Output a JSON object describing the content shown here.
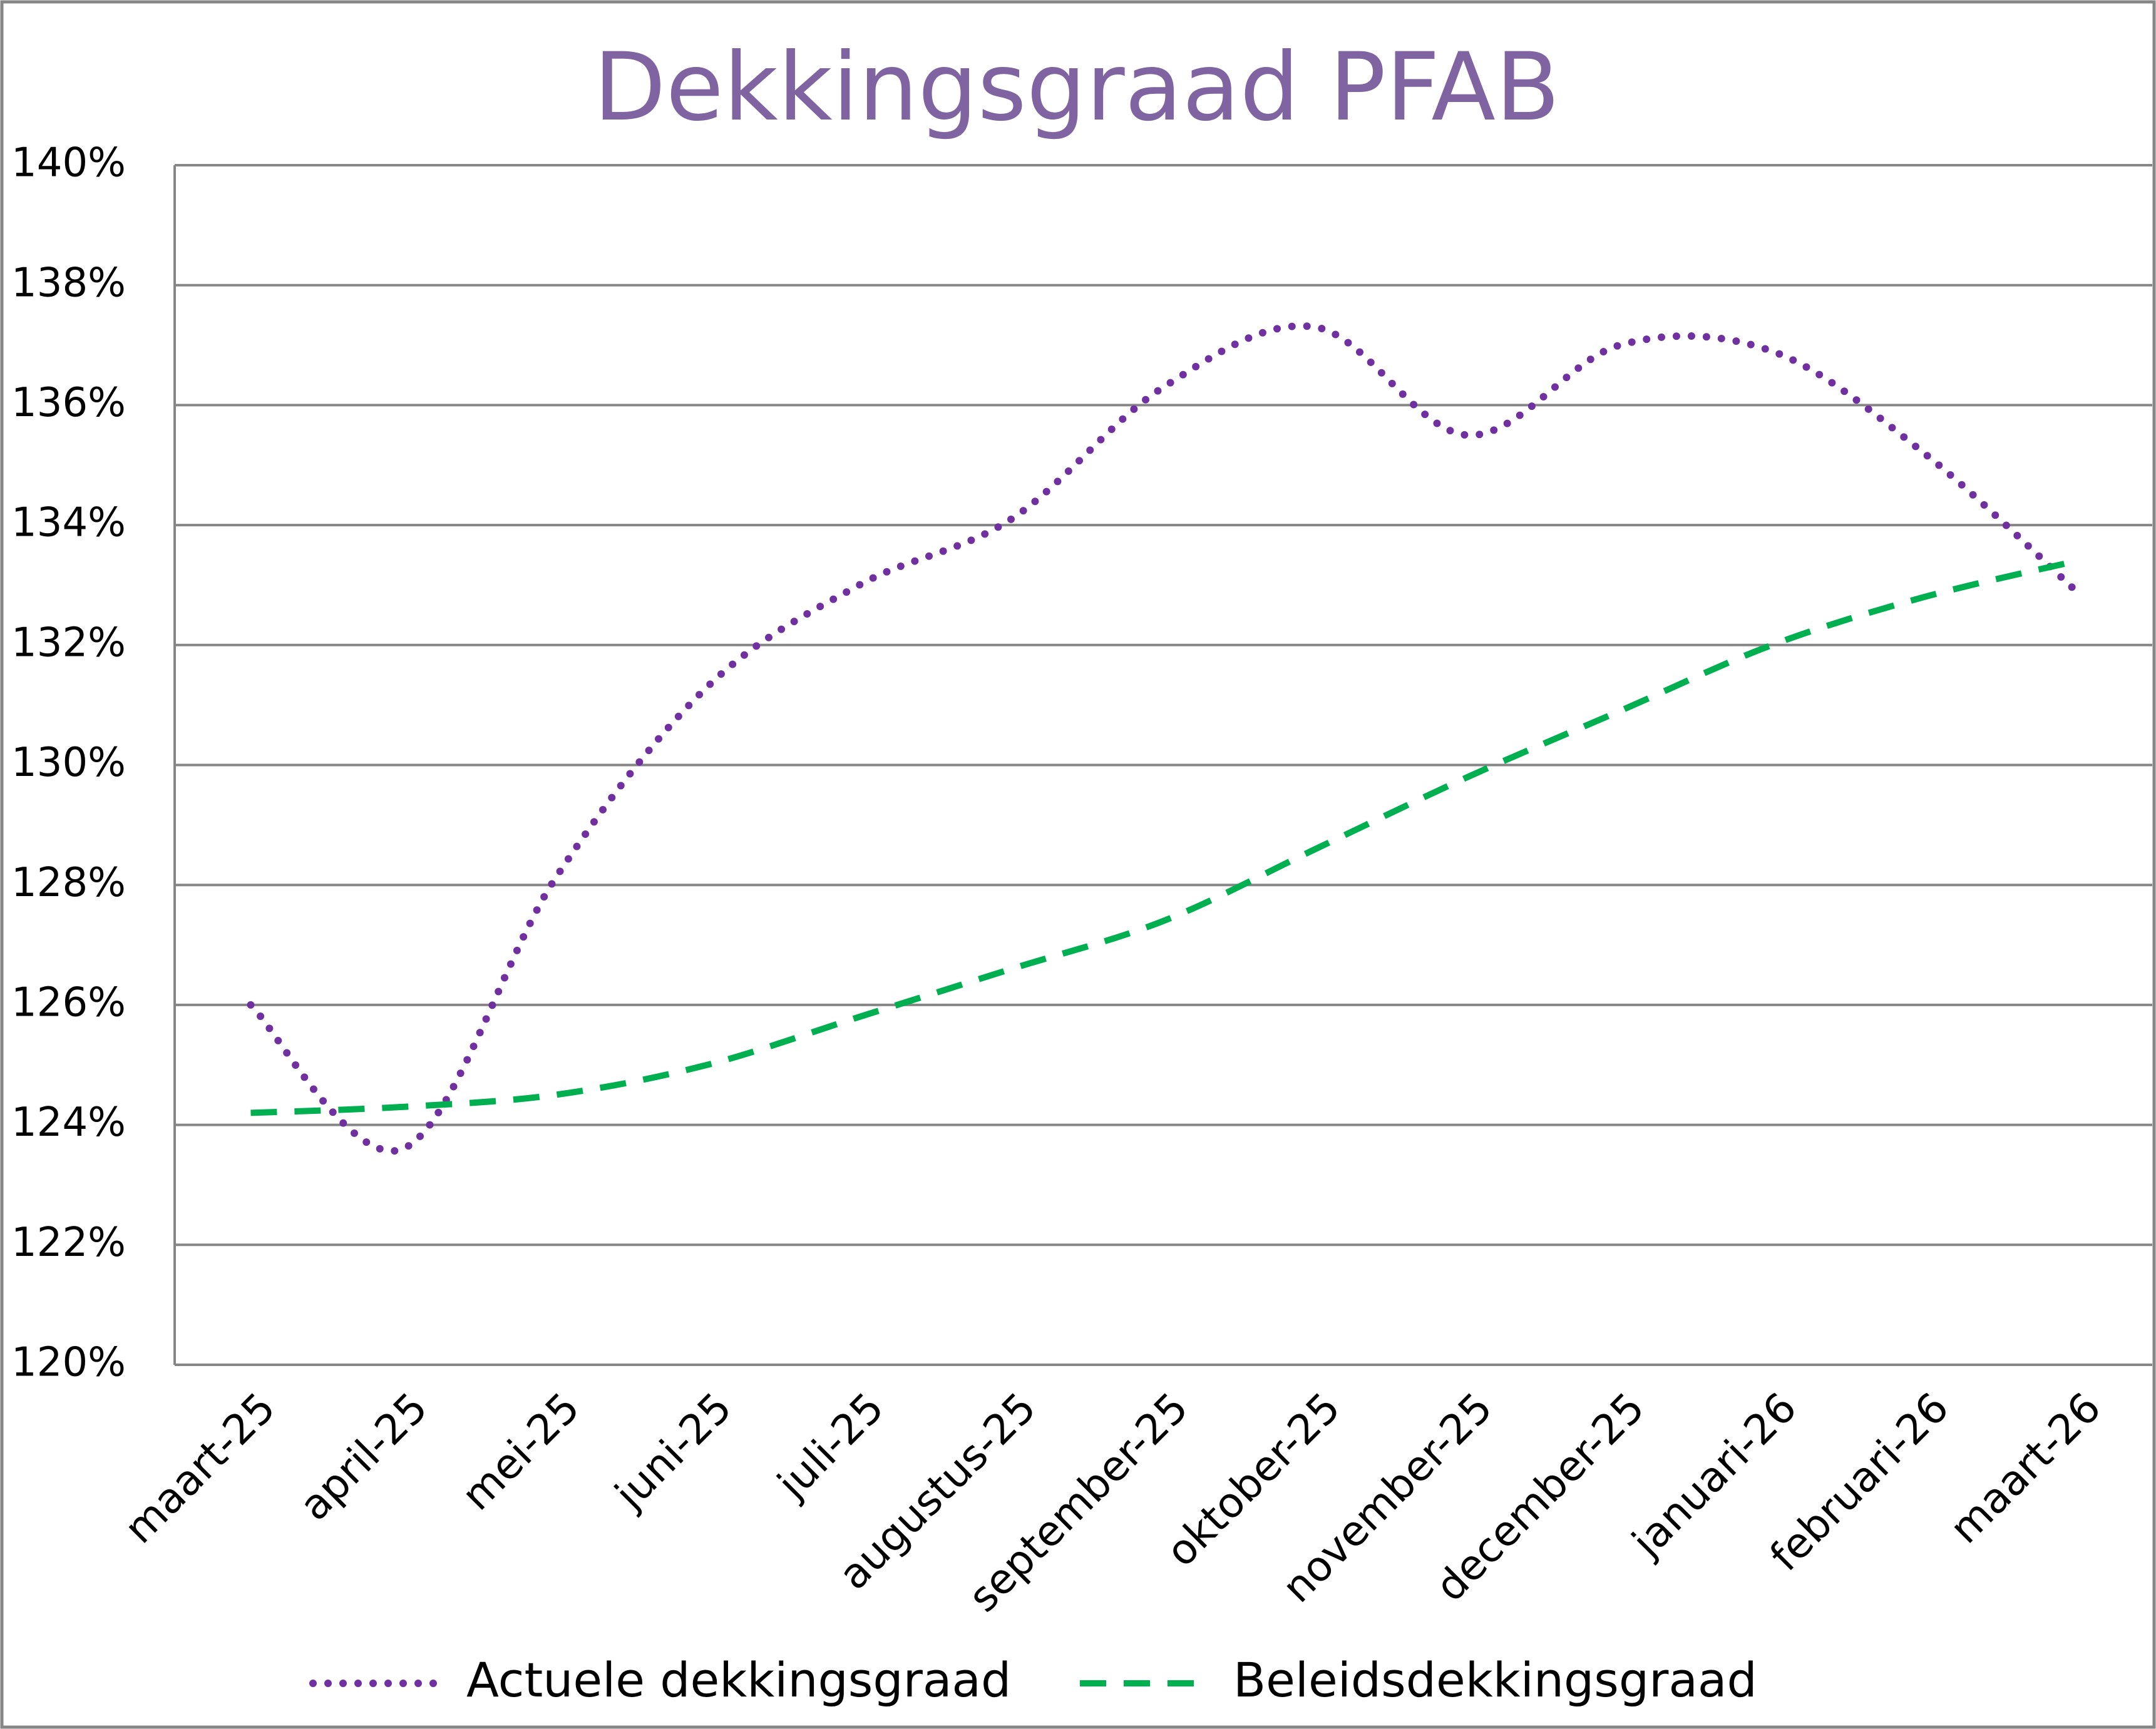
{
  "chart_data": {
    "type": "line",
    "title": "Dekkingsgraad  PFAB",
    "categories": [
      "maart-25",
      "april-25",
      "mei-25",
      "juni-25",
      "juli-25",
      "augustus-25",
      "september-25",
      "oktober-25",
      "november-25",
      "december-25",
      "januari-26",
      "februari-26",
      "maart-26"
    ],
    "series": [
      {
        "name": "Actuele dekkingsgraad",
        "color": "#7030a0",
        "style": "dotted",
        "values": [
          126.0,
          123.6,
          128.1,
          131.3,
          133.0,
          134.1,
          136.3,
          137.3,
          135.5,
          137.0,
          136.9,
          135.2,
          132.9
        ]
      },
      {
        "name": "Beleidsdekkingsgraad",
        "color": "#00b050",
        "style": "dashed",
        "values": [
          124.2,
          124.3,
          124.5,
          125.0,
          125.8,
          126.6,
          127.4,
          128.6,
          129.8,
          130.9,
          132.0,
          132.8,
          133.4
        ]
      }
    ],
    "ylim": [
      120,
      140
    ],
    "yticks": [
      {
        "value": 120,
        "label": "120%"
      },
      {
        "value": 122,
        "label": "122%"
      },
      {
        "value": 124,
        "label": "124%"
      },
      {
        "value": 126,
        "label": "126%"
      },
      {
        "value": 128,
        "label": "128%"
      },
      {
        "value": 130,
        "label": "130%"
      },
      {
        "value": 132,
        "label": "132%"
      },
      {
        "value": 134,
        "label": "134%"
      },
      {
        "value": 136,
        "label": "136%"
      },
      {
        "value": 138,
        "label": "138%"
      },
      {
        "value": 140,
        "label": "140%"
      }
    ],
    "grid": true,
    "legend": "bottom"
  }
}
